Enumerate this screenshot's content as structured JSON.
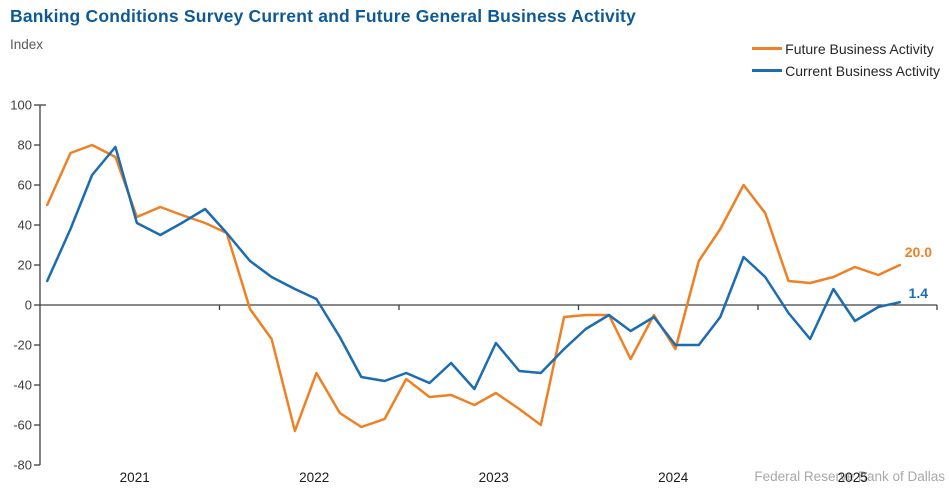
{
  "title": "Banking Conditions Survey Current and Future General Business Activity",
  "y_axis_unit_label": "Index",
  "legend": {
    "items": [
      {
        "label": "Future Business Activity",
        "color": "#ef8023"
      },
      {
        "label": "Current Business Activity",
        "color": "#1b6cb0"
      }
    ]
  },
  "end_labels": {
    "future": "20.0",
    "current": "1.4"
  },
  "watermark": "Federal Reserve Bank of Dallas",
  "colors": {
    "title": "#0e5a96",
    "axis": "#404040",
    "tick_text": "#404040",
    "year_text": "#1a1a1a",
    "future_line": "#ef8023",
    "current_line": "#1b6cb0"
  },
  "chart_data": {
    "type": "line",
    "title": "Banking Conditions Survey Current and Future General Business Activity",
    "ylabel": "Index",
    "xlabel": "",
    "grid": false,
    "legend_position": "top-right",
    "ylim": [
      -80,
      100
    ],
    "xlim": [
      2020.97,
      2026.0
    ],
    "yticks": [
      100,
      80,
      60,
      40,
      20,
      0,
      -20,
      -40,
      -60,
      -80
    ],
    "xticks": [
      2021,
      2022,
      2023,
      2024,
      2025
    ],
    "x": [
      2021.04,
      2021.17,
      2021.29,
      2021.42,
      2021.54,
      2021.67,
      2021.79,
      2021.92,
      2022.04,
      2022.17,
      2022.29,
      2022.42,
      2022.54,
      2022.67,
      2022.79,
      2022.92,
      2023.04,
      2023.17,
      2023.29,
      2023.42,
      2023.54,
      2023.67,
      2023.79,
      2023.92,
      2024.04,
      2024.17,
      2024.29,
      2024.42,
      2024.54,
      2024.67,
      2024.79,
      2024.92,
      2025.04,
      2025.17,
      2025.29,
      2025.42,
      2025.54,
      2025.67,
      2025.79
    ],
    "series": [
      {
        "name": "Future Business Activity",
        "color": "#ef8023",
        "values": [
          50,
          76,
          80,
          74,
          44,
          49,
          45,
          41,
          36,
          -2,
          -17,
          -63,
          -34,
          -54,
          -61,
          -57,
          -37,
          -46,
          -45,
          -50,
          -44,
          -52,
          -60,
          -6,
          -5,
          -5,
          -27,
          -5,
          -22,
          22,
          38,
          60,
          46,
          12,
          11,
          14,
          19,
          15,
          20.0
        ]
      },
      {
        "name": "Current Business Activity",
        "color": "#1b6cb0",
        "values": [
          12,
          38,
          65,
          79,
          41,
          35,
          41,
          48,
          36,
          22,
          14,
          8,
          3,
          -16,
          -36,
          -38,
          -34,
          -39,
          -29,
          -42,
          -19,
          -33,
          -34,
          -22,
          -12,
          -5,
          -13,
          -6,
          -20,
          -20,
          -6,
          24,
          14,
          -4,
          -17,
          8,
          -8,
          -1,
          1.4
        ]
      }
    ]
  }
}
